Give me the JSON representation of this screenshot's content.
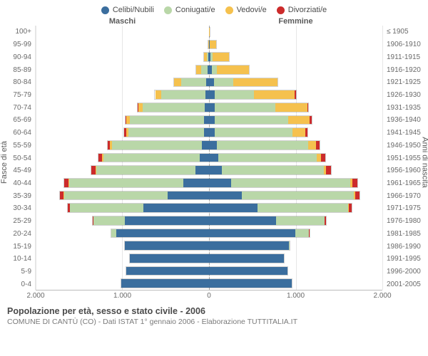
{
  "legend": {
    "items": [
      {
        "label": "Celibi/Nubili",
        "color": "#3b6e9e"
      },
      {
        "label": "Coniugati/e",
        "color": "#b9d7a8"
      },
      {
        "label": "Vedovi/e",
        "color": "#f5c14e"
      },
      {
        "label": "Divorziati/e",
        "color": "#cc2b2b"
      }
    ]
  },
  "headers": {
    "male": "Maschi",
    "female": "Femmine"
  },
  "axis": {
    "y_left_title": "Fasce di età",
    "y_right_title": "Anni di nascita",
    "x_max": 2000,
    "x_ticks": [
      2000,
      1000,
      0,
      1000,
      2000
    ],
    "x_tick_labels": [
      "2.000",
      "1.000",
      "0",
      "1.000",
      "2.000"
    ]
  },
  "colors": {
    "celibi": "#3b6e9e",
    "coniugati": "#b9d7a8",
    "vedovi": "#f5c14e",
    "divorziati": "#cc2b2b",
    "grid": "#e6e6e6",
    "center": "#aaaaaa",
    "text": "#5a5a5a",
    "border": "#bbbbbb"
  },
  "rows": [
    {
      "age": "100+",
      "birth": "≤ 1905",
      "m": [
        0,
        0,
        0,
        0
      ],
      "f": [
        0,
        0,
        20,
        0
      ]
    },
    {
      "age": "95-99",
      "birth": "1906-1910",
      "m": [
        0,
        0,
        20,
        0
      ],
      "f": [
        10,
        0,
        80,
        0
      ]
    },
    {
      "age": "90-94",
      "birth": "1911-1915",
      "m": [
        10,
        20,
        40,
        0
      ],
      "f": [
        20,
        20,
        200,
        0
      ]
    },
    {
      "age": "85-89",
      "birth": "1916-1920",
      "m": [
        15,
        80,
        60,
        0
      ],
      "f": [
        30,
        60,
        380,
        0
      ]
    },
    {
      "age": "80-84",
      "birth": "1921-1925",
      "m": [
        30,
        300,
        80,
        0
      ],
      "f": [
        60,
        220,
        520,
        0
      ]
    },
    {
      "age": "75-79",
      "birth": "1926-1930",
      "m": [
        40,
        520,
        70,
        0
      ],
      "f": [
        70,
        450,
        480,
        10
      ]
    },
    {
      "age": "70-74",
      "birth": "1931-1935",
      "m": [
        50,
        720,
        50,
        10
      ],
      "f": [
        70,
        700,
        370,
        15
      ]
    },
    {
      "age": "65-69",
      "birth": "1936-1940",
      "m": [
        60,
        860,
        40,
        15
      ],
      "f": [
        70,
        850,
        250,
        20
      ]
    },
    {
      "age": "60-64",
      "birth": "1941-1945",
      "m": [
        60,
        880,
        25,
        20
      ],
      "f": [
        70,
        900,
        150,
        25
      ]
    },
    {
      "age": "55-59",
      "birth": "1946-1950",
      "m": [
        80,
        1050,
        20,
        30
      ],
      "f": [
        90,
        1060,
        90,
        40
      ]
    },
    {
      "age": "50-54",
      "birth": "1951-1955",
      "m": [
        110,
        1120,
        15,
        40
      ],
      "f": [
        110,
        1140,
        50,
        50
      ]
    },
    {
      "age": "45-49",
      "birth": "1956-1960",
      "m": [
        160,
        1150,
        10,
        50
      ],
      "f": [
        150,
        1180,
        30,
        55
      ]
    },
    {
      "age": "40-44",
      "birth": "1961-1965",
      "m": [
        300,
        1320,
        8,
        55
      ],
      "f": [
        260,
        1380,
        20,
        60
      ]
    },
    {
      "age": "35-39",
      "birth": "1966-1970",
      "m": [
        480,
        1200,
        5,
        45
      ],
      "f": [
        380,
        1300,
        12,
        55
      ]
    },
    {
      "age": "30-34",
      "birth": "1971-1975",
      "m": [
        760,
        850,
        2,
        25
      ],
      "f": [
        560,
        1050,
        8,
        35
      ]
    },
    {
      "age": "25-29",
      "birth": "1976-1980",
      "m": [
        980,
        360,
        0,
        10
      ],
      "f": [
        780,
        560,
        4,
        15
      ]
    },
    {
      "age": "20-24",
      "birth": "1981-1985",
      "m": [
        1080,
        60,
        0,
        0
      ],
      "f": [
        1000,
        160,
        0,
        5
      ]
    },
    {
      "age": "15-19",
      "birth": "1986-1990",
      "m": [
        980,
        0,
        0,
        0
      ],
      "f": [
        930,
        10,
        0,
        0
      ]
    },
    {
      "age": "10-14",
      "birth": "1991-1995",
      "m": [
        920,
        0,
        0,
        0
      ],
      "f": [
        870,
        0,
        0,
        0
      ]
    },
    {
      "age": "5-9",
      "birth": "1996-2000",
      "m": [
        960,
        0,
        0,
        0
      ],
      "f": [
        910,
        0,
        0,
        0
      ]
    },
    {
      "age": "0-4",
      "birth": "2001-2005",
      "m": [
        1020,
        0,
        0,
        0
      ],
      "f": [
        960,
        0,
        0,
        0
      ]
    }
  ],
  "footer": {
    "title": "Popolazione per età, sesso e stato civile - 2006",
    "subtitle": "COMUNE DI CANTÙ (CO) - Dati ISTAT 1° gennaio 2006 - Elaborazione TUTTITALIA.IT"
  },
  "chart_type": "population-pyramid"
}
